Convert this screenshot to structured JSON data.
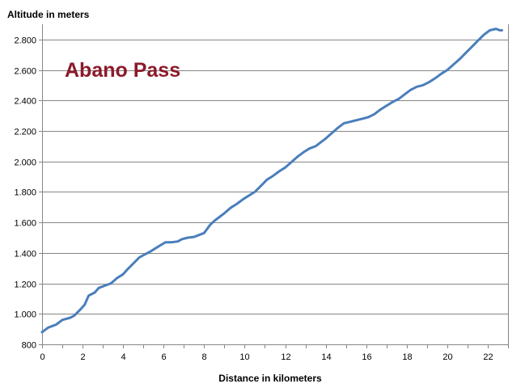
{
  "chart_data": {
    "type": "line",
    "title": "Abano Pass",
    "xlabel": "Distance in kilometers",
    "ylabel": "Altitude in meters",
    "xlim": [
      0,
      23
    ],
    "ylim": [
      800,
      2900
    ],
    "x_ticks": [
      "0",
      "2",
      "4",
      "6",
      "8",
      "10",
      "12",
      "14",
      "16",
      "18",
      "20",
      "22"
    ],
    "y_ticks": [
      "800",
      "1.000",
      "1.200",
      "1.400",
      "1.600",
      "1.800",
      "2.000",
      "2.200",
      "2.400",
      "2.600",
      "2.800"
    ],
    "grid": true,
    "legend": "none",
    "colors": {
      "line": "#4a7ebb",
      "title": "#8b1a2b",
      "grid": "#868686"
    },
    "series": [
      {
        "x": [
          0,
          0.3,
          0.7,
          1.0,
          1.4,
          1.6,
          1.9,
          2.1,
          2.3,
          2.6,
          2.8,
          3.1,
          3.4,
          3.7,
          4.0,
          4.2,
          4.5,
          4.8,
          5.0,
          5.3,
          5.6,
          5.9,
          6.1,
          6.4,
          6.7,
          6.9,
          7.2,
          7.5,
          7.7,
          8.0,
          8.3,
          8.5,
          8.7,
          9.0,
          9.3,
          9.6,
          9.9,
          10.2,
          10.5,
          10.8,
          11.1,
          11.4,
          11.7,
          12.0,
          12.3,
          12.6,
          12.9,
          13.2,
          13.5,
          13.8,
          14.0,
          14.3,
          14.6,
          14.9,
          15.2,
          15.5,
          15.8,
          16.1,
          16.4,
          16.7,
          17.0,
          17.3,
          17.6,
          17.9,
          18.2,
          18.5,
          18.8,
          19.1,
          19.4,
          19.7,
          20.0,
          20.3,
          20.6,
          20.9,
          21.2,
          21.5,
          21.8,
          22.1,
          22.4,
          22.6,
          22.7
        ],
        "y": [
          880,
          910,
          930,
          960,
          975,
          990,
          1030,
          1060,
          1120,
          1140,
          1170,
          1185,
          1200,
          1235,
          1260,
          1290,
          1330,
          1370,
          1385,
          1405,
          1430,
          1455,
          1470,
          1470,
          1475,
          1490,
          1500,
          1505,
          1515,
          1530,
          1585,
          1610,
          1630,
          1660,
          1695,
          1720,
          1750,
          1775,
          1800,
          1840,
          1880,
          1905,
          1935,
          1960,
          1995,
          2030,
          2060,
          2085,
          2100,
          2130,
          2150,
          2185,
          2220,
          2250,
          2260,
          2270,
          2280,
          2290,
          2310,
          2340,
          2365,
          2390,
          2410,
          2440,
          2470,
          2490,
          2500,
          2520,
          2545,
          2575,
          2600,
          2635,
          2670,
          2710,
          2750,
          2790,
          2830,
          2860,
          2870,
          2860,
          2860
        ]
      }
    ]
  }
}
